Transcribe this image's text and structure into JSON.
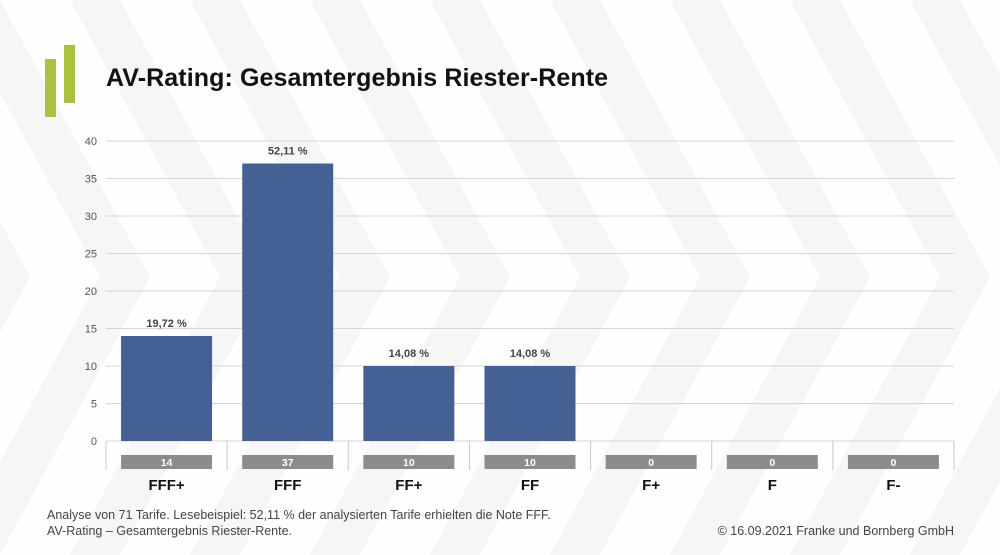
{
  "title": "AV-Rating: Gesamtergebnis Riester-Rente",
  "colors": {
    "bar": "#456193",
    "count_box": "#8c8c8c",
    "accent": "#a9c23f",
    "grid": "#d6d6d6"
  },
  "chart_data": {
    "type": "bar",
    "title": "AV-Rating: Gesamtergebnis Riester-Rente",
    "xlabel": "",
    "ylabel": "",
    "ylim": [
      0,
      40
    ],
    "yticks": [
      0,
      5,
      10,
      15,
      20,
      25,
      30,
      35,
      40
    ],
    "grid": true,
    "categories": [
      "FFF+",
      "FFF",
      "FF+",
      "FF",
      "F+",
      "F",
      "F-"
    ],
    "values": [
      14,
      37,
      10,
      10,
      0,
      0,
      0
    ],
    "bar_labels": [
      "19,72 %",
      "52,11 %",
      "14,08 %",
      "14,08 %",
      "",
      "",
      ""
    ],
    "count_labels": [
      "14",
      "37",
      "10",
      "10",
      "0",
      "0",
      "0"
    ]
  },
  "footer": {
    "note_line1": "Analyse von 71 Tarife. Lesebeispiel: 52,11 % der analysierten Tarife erhielten die Note FFF.",
    "note_line2": "AV-Rating – Gesamtergebnis Riester-Rente.",
    "copyright": "© 16.09.2021 Franke und Bornberg GmbH"
  }
}
